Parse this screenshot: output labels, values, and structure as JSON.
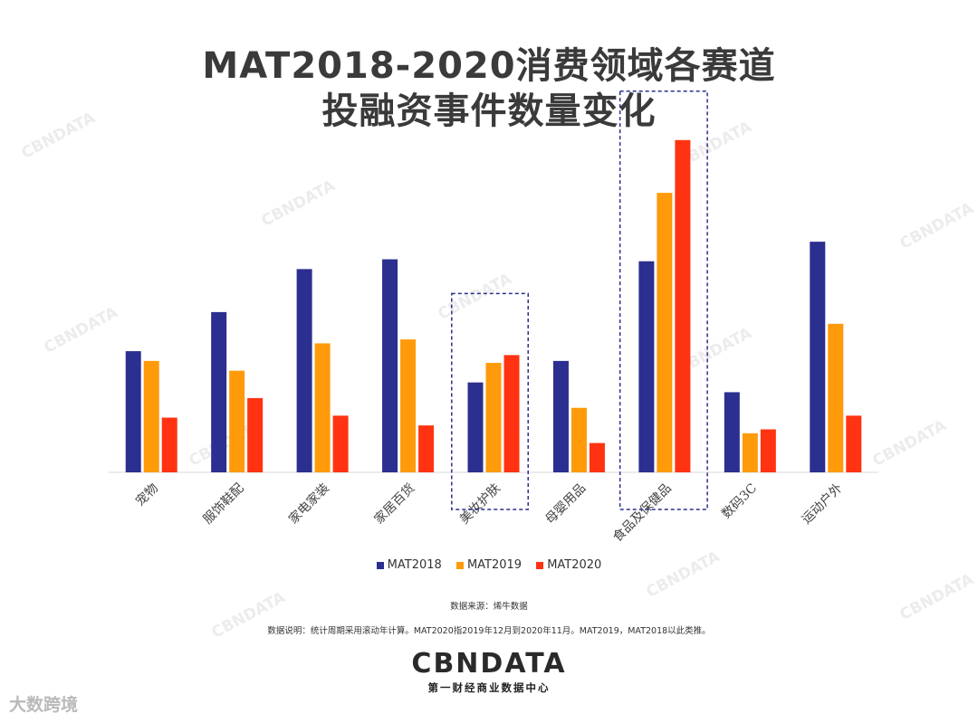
{
  "title": {
    "line1": "MAT2018-2020消费领域各赛道",
    "line2": "投融资事件数量变化"
  },
  "chart_data": {
    "type": "bar",
    "title": "MAT2018-2020消费领域各赛道投融资事件数量变化",
    "xlabel": "",
    "ylabel": "",
    "ylim": [
      0,
      100
    ],
    "grid": false,
    "legend_position": "bottom",
    "categories": [
      "宠物",
      "服饰鞋配",
      "家电家装",
      "家居百货",
      "美妆护肤",
      "母婴用品",
      "食品及保健品",
      "数码3C",
      "运动户外"
    ],
    "series": [
      {
        "name": "MAT2018",
        "color": "#2b2f8f",
        "values": [
          31,
          41,
          52,
          54.5,
          23,
          28.5,
          54,
          20.5,
          59
        ]
      },
      {
        "name": "MAT2019",
        "color": "#ff9a0a",
        "values": [
          28.5,
          26,
          33,
          34,
          28,
          16.5,
          71.5,
          10,
          38
        ]
      },
      {
        "name": "MAT2020",
        "color": "#ff3311",
        "values": [
          14,
          19,
          14.5,
          12,
          30,
          7.5,
          85,
          11,
          14.5
        ]
      }
    ],
    "highlighted_categories": [
      "美妆护肤",
      "食品及保健品"
    ]
  },
  "legend": [
    {
      "label": "MAT2018",
      "color": "#2b2f8f"
    },
    {
      "label": "MAT2019",
      "color": "#ff9a0a"
    },
    {
      "label": "MAT2020",
      "color": "#ff3311"
    }
  ],
  "source_note": "数据来源：烯牛数据",
  "description_note": "数据说明：统计周期采用滚动年计算。MAT2020指2019年12月到2020年11月。MAT2019，MAT2018以此类推。",
  "brand": {
    "logo": "CBNDATA",
    "tagline": "第一财经商业数据中心",
    "watermark": "CBNDATA",
    "corner_text": "大数跨境"
  }
}
